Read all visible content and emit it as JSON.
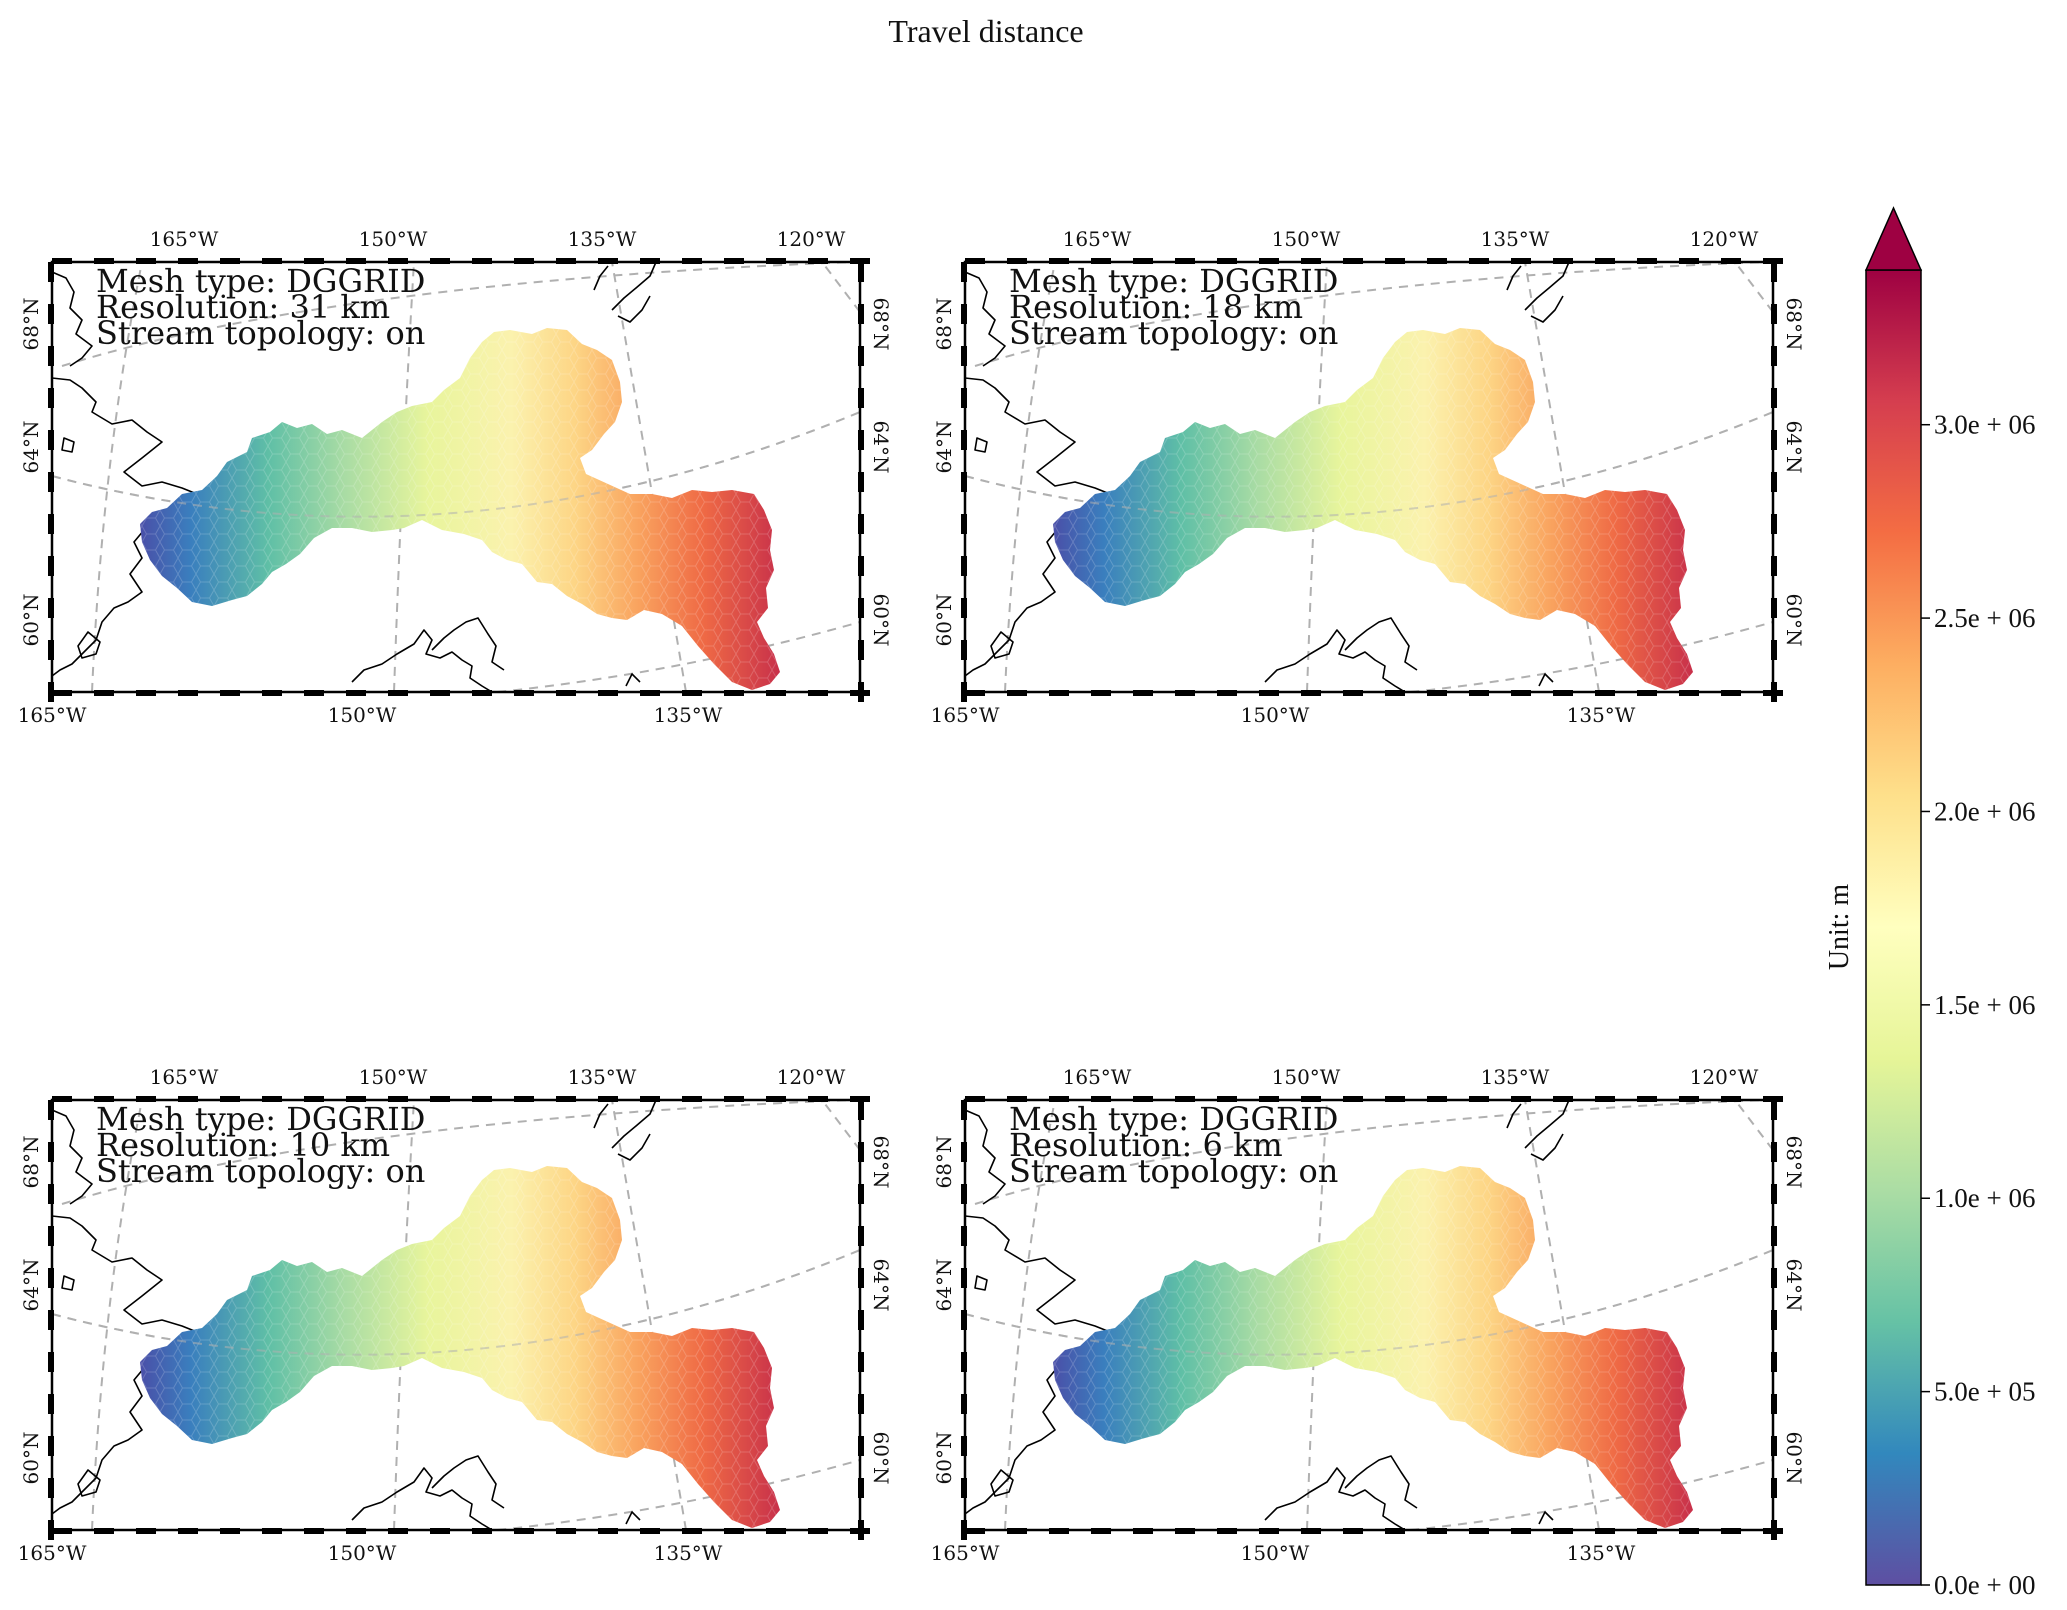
{
  "figure": {
    "title": "Travel distance"
  },
  "panels": [
    {
      "mesh_line": "Mesh type: DGGRID",
      "resolution_line": "Resolution: 31 km",
      "topology_line": "Stream topology: on",
      "top_ticks": [
        "165°W",
        "150°W",
        "135°W",
        "120°W"
      ],
      "bottom_ticks": [
        "165°W",
        "150°W",
        "135°W"
      ],
      "left_ticks": [
        "68°N",
        "64°N",
        "60°N"
      ],
      "right_ticks": [
        "68°N",
        "64°N",
        "60°N"
      ]
    },
    {
      "mesh_line": "Mesh type: DGGRID",
      "resolution_line": "Resolution: 18 km",
      "topology_line": "Stream topology: on",
      "top_ticks": [
        "165°W",
        "150°W",
        "135°W",
        "120°W"
      ],
      "bottom_ticks": [
        "165°W",
        "150°W",
        "135°W"
      ],
      "left_ticks": [
        "68°N",
        "64°N",
        "60°N"
      ],
      "right_ticks": [
        "68°N",
        "64°N",
        "60°N"
      ]
    },
    {
      "mesh_line": "Mesh type: DGGRID",
      "resolution_line": "Resolution: 10 km",
      "topology_line": "Stream topology: on",
      "top_ticks": [
        "165°W",
        "150°W",
        "135°W",
        "120°W"
      ],
      "bottom_ticks": [
        "165°W",
        "150°W",
        "135°W"
      ],
      "left_ticks": [
        "68°N",
        "64°N",
        "60°N"
      ],
      "right_ticks": [
        "68°N",
        "64°N",
        "60°N"
      ]
    },
    {
      "mesh_line": "Mesh type: DGGRID",
      "resolution_line": "Resolution: 6 km",
      "topology_line": "Stream topology: on",
      "top_ticks": [
        "165°W",
        "150°W",
        "135°W",
        "120°W"
      ],
      "bottom_ticks": [
        "165°W",
        "150°W",
        "135°W"
      ],
      "left_ticks": [
        "68°N",
        "64°N",
        "60°N"
      ],
      "right_ticks": [
        "68°N",
        "64°N",
        "60°N"
      ]
    }
  ],
  "colorbar": {
    "label": "Unit: m",
    "colormap": "Spectral_r",
    "range": [
      0,
      3400000
    ],
    "extend": "max",
    "ticks": [
      {
        "value": 0,
        "label": "0.0e + 00"
      },
      {
        "value": 500000,
        "label": "5.0e + 05"
      },
      {
        "value": 1000000,
        "label": "1.0e + 06"
      },
      {
        "value": 1500000,
        "label": "1.5e + 06"
      },
      {
        "value": 2000000,
        "label": "2.0e + 06"
      },
      {
        "value": 2500000,
        "label": "2.5e + 06"
      },
      {
        "value": 3000000,
        "label": "3.0e + 06"
      }
    ],
    "colors": [
      "#5e4fa2",
      "#3288bd",
      "#66c2a5",
      "#abdda4",
      "#e6f598",
      "#ffffbf",
      "#fee08b",
      "#fdae61",
      "#f46d43",
      "#d53e4f",
      "#9e0142"
    ]
  }
}
